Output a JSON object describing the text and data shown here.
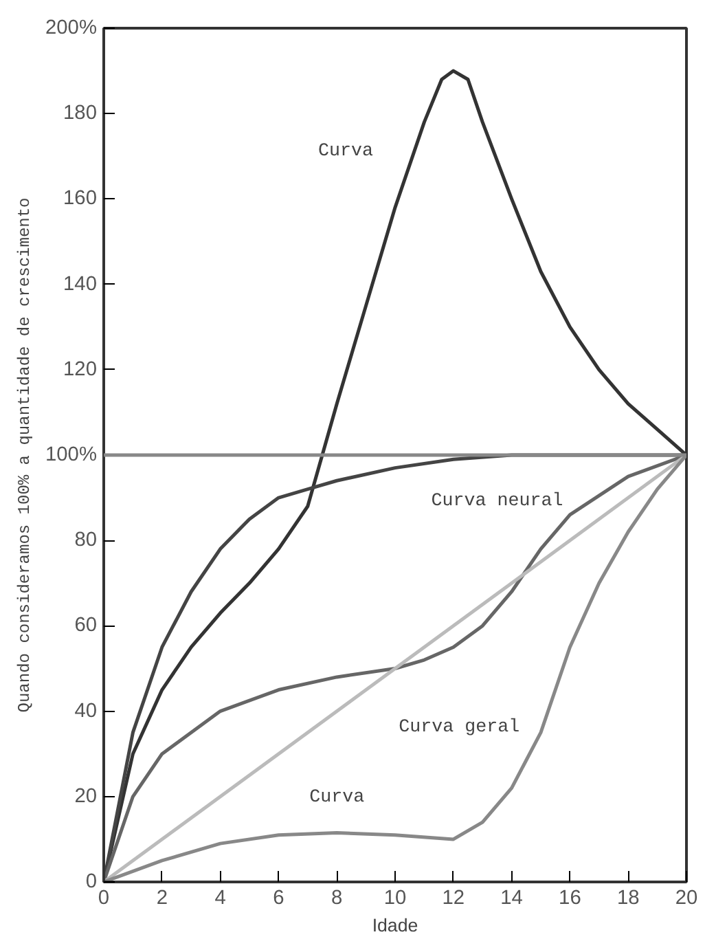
{
  "chart_data": {
    "type": "line",
    "xlabel": "Idade",
    "ylabel": "Quando consideramos 100% a quantidade de crescimento",
    "xlim": [
      0,
      20
    ],
    "ylim": [
      0,
      200
    ],
    "xticks": [
      0,
      2,
      4,
      6,
      8,
      10,
      12,
      14,
      16,
      18,
      20
    ],
    "yticks": [
      0,
      20,
      40,
      60,
      80,
      {
        "value": 100,
        "label": "100%"
      },
      120,
      140,
      160,
      180,
      {
        "value": 200,
        "label": "200%"
      }
    ],
    "grid": false,
    "marker": "none",
    "line_style": "solid",
    "series": [
      {
        "color": "#333333",
        "x": [
          0,
          1,
          2,
          3,
          4,
          5,
          6,
          7,
          7.5,
          8,
          9,
          10,
          11,
          11.6,
          12,
          12.5,
          13,
          14,
          15,
          16,
          17,
          18,
          19,
          20
        ],
        "values": [
          0,
          30,
          45,
          55,
          63,
          70,
          78,
          88,
          100,
          112,
          135,
          158,
          178,
          188,
          190,
          188,
          178,
          160,
          143,
          130,
          120,
          112,
          106,
          100
        ]
      },
      {
        "color": "#444444",
        "x": [
          0,
          1,
          2,
          3,
          4,
          5,
          6,
          7,
          8,
          10,
          12,
          14,
          16,
          20
        ],
        "values": [
          0,
          35,
          55,
          68,
          78,
          85,
          90,
          92,
          94,
          97,
          99,
          100,
          100,
          100
        ]
      },
      {
        "color": "#666666",
        "x": [
          0,
          1,
          2,
          4,
          6,
          8,
          10,
          11,
          12,
          13,
          14,
          15,
          16,
          18,
          20
        ],
        "values": [
          0,
          20,
          30,
          40,
          45,
          48,
          50,
          52,
          55,
          60,
          68,
          78,
          86,
          95,
          100
        ]
      },
      {
        "color": "#bbbbbb",
        "x": [
          0,
          20
        ],
        "values": [
          0,
          100
        ]
      },
      {
        "color": "#888888",
        "x": [
          0,
          2,
          4,
          6,
          8,
          10,
          12,
          13,
          14,
          15,
          16,
          17,
          18,
          19,
          20
        ],
        "values": [
          0,
          5,
          9,
          11,
          11.5,
          11,
          10,
          14,
          22,
          35,
          55,
          70,
          82,
          92,
          100
        ]
      }
    ],
    "ref_lines": [
      {
        "axis": "y",
        "value": 100,
        "color": "#888888"
      }
    ],
    "annotations": [
      "Curva",
      "Curva neural",
      "Curva geral",
      "Curva"
    ]
  }
}
